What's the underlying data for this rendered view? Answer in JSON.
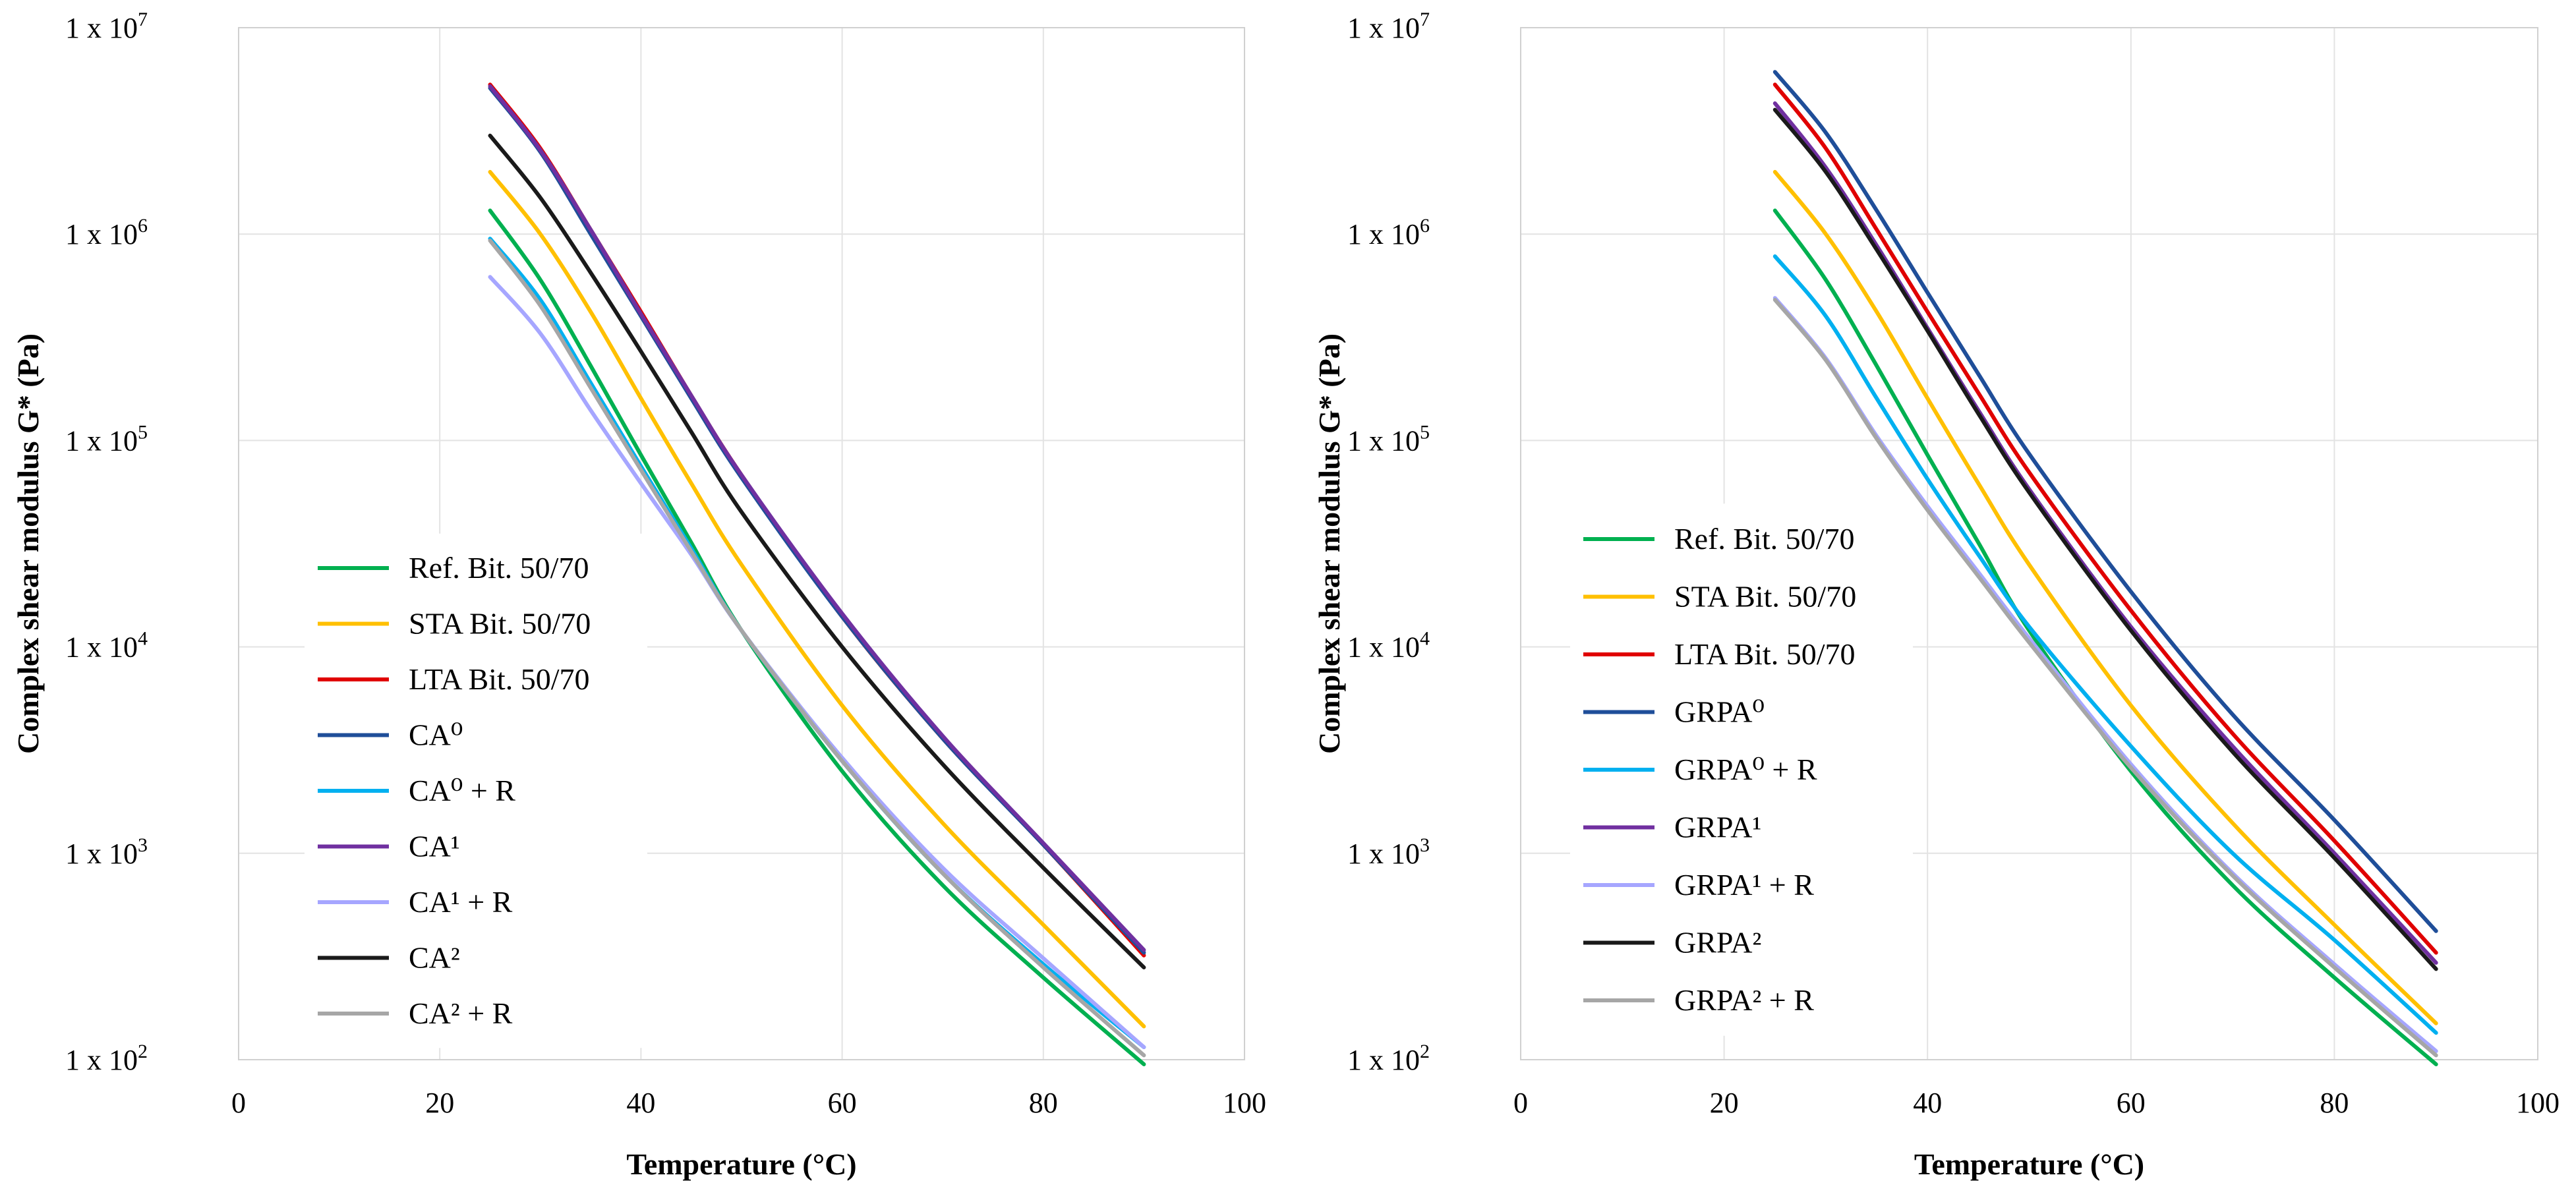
{
  "chart_data": [
    {
      "type": "line",
      "title": "",
      "xlabel": "Temperature (°C)",
      "ylabel": "Complex shear modulus G* (Pa)",
      "xlim": [
        0,
        100
      ],
      "ylim": [
        100,
        10000000
      ],
      "yscale": "log",
      "grid": true,
      "legend_position": "bottom-left",
      "x_ticks": [
        "0",
        "20",
        "40",
        "60",
        "80",
        "100"
      ],
      "y_ticks": [
        {
          "base": "1 x 10",
          "exp": "2"
        },
        {
          "base": "1 x 10",
          "exp": "3"
        },
        {
          "base": "1 x 10",
          "exp": "4"
        },
        {
          "base": "1 x 10",
          "exp": "5"
        },
        {
          "base": "1 x 10",
          "exp": "6"
        },
        {
          "base": "1 x 10",
          "exp": "7"
        }
      ],
      "series": [
        {
          "name": "Ref. Bit. 50/70",
          "color": "#00b050",
          "x": [
            25,
            30,
            35,
            40,
            45,
            50,
            60,
            70,
            80,
            90
          ],
          "values": [
            1300000,
            600000,
            230000,
            85000,
            32000,
            12000,
            2500,
            700,
            250,
            95
          ]
        },
        {
          "name": "STA Bit. 50/70",
          "color": "#ffc000",
          "x": [
            25,
            30,
            35,
            40,
            45,
            50,
            60,
            70,
            80,
            90
          ],
          "values": [
            2000000,
            1000000,
            420000,
            160000,
            62000,
            25000,
            5200,
            1400,
            450,
            145
          ]
        },
        {
          "name": "LTA Bit. 50/70",
          "color": "#e00000",
          "x": [
            25,
            30,
            35,
            40,
            45,
            50,
            60,
            70,
            80,
            90
          ],
          "values": [
            5300000,
            2600000,
            1050000,
            420000,
            165000,
            68000,
            14000,
            3600,
            1100,
            320
          ]
        },
        {
          "name": "CA⁰",
          "color": "#1f4e99",
          "x": [
            25,
            30,
            35,
            40,
            45,
            50,
            60,
            70,
            80,
            90
          ],
          "values": [
            5100000,
            2500000,
            1000000,
            400000,
            160000,
            66000,
            14000,
            3600,
            1100,
            330
          ]
        },
        {
          "name": "CA⁰ + R",
          "color": "#00b0f0",
          "x": [
            25,
            30,
            35,
            40,
            45,
            50,
            60,
            70,
            80,
            90
          ],
          "values": [
            950000,
            480000,
            190000,
            75000,
            30000,
            12000,
            2800,
            800,
            290,
            115
          ]
        },
        {
          "name": "CA¹",
          "color": "#7030a0",
          "x": [
            25,
            30,
            35,
            40,
            45,
            50,
            60,
            70,
            80,
            90
          ],
          "values": [
            5200000,
            2550000,
            1050000,
            410000,
            165000,
            68000,
            14500,
            3700,
            1120,
            340
          ]
        },
        {
          "name": "CA¹ + R",
          "color": "#a6a6ff",
          "x": [
            25,
            30,
            35,
            40,
            45,
            50,
            60,
            70,
            80,
            90
          ],
          "values": [
            620000,
            330000,
            140000,
            62000,
            28000,
            12000,
            2900,
            850,
            310,
            115
          ]
        },
        {
          "name": "CA²",
          "color": "#1a1a1a",
          "x": [
            25,
            30,
            35,
            40,
            45,
            50,
            60,
            70,
            80,
            90
          ],
          "values": [
            3000000,
            1500000,
            650000,
            270000,
            110000,
            45000,
            10000,
            2700,
            850,
            280
          ]
        },
        {
          "name": "CA² + R",
          "color": "#a6a6a6",
          "x": [
            25,
            30,
            35,
            40,
            45,
            50,
            60,
            70,
            80,
            90
          ],
          "values": [
            930000,
            450000,
            180000,
            72000,
            29000,
            12000,
            2800,
            800,
            280,
            105
          ]
        }
      ]
    },
    {
      "type": "line",
      "title": "",
      "xlabel": "Temperature (°C)",
      "ylabel": "Complex shear modulus G* (Pa)",
      "xlim": [
        0,
        100
      ],
      "ylim": [
        100,
        10000000
      ],
      "yscale": "log",
      "grid": true,
      "legend_position": "bottom-left",
      "x_ticks": [
        "0",
        "20",
        "40",
        "60",
        "80",
        "100"
      ],
      "y_ticks": [
        {
          "base": "1 x 10",
          "exp": "2"
        },
        {
          "base": "1 x 10",
          "exp": "3"
        },
        {
          "base": "1 x 10",
          "exp": "4"
        },
        {
          "base": "1 x 10",
          "exp": "5"
        },
        {
          "base": "1 x 10",
          "exp": "6"
        },
        {
          "base": "1 x 10",
          "exp": "7"
        }
      ],
      "series": [
        {
          "name": "Ref. Bit. 50/70",
          "color": "#00b050",
          "x": [
            25,
            30,
            35,
            40,
            45,
            50,
            60,
            70,
            80,
            90
          ],
          "values": [
            1300000,
            600000,
            230000,
            85000,
            32000,
            12000,
            2500,
            700,
            250,
            95
          ]
        },
        {
          "name": "STA Bit. 50/70",
          "color": "#ffc000",
          "x": [
            25,
            30,
            35,
            40,
            45,
            50,
            60,
            70,
            80,
            90
          ],
          "values": [
            2000000,
            1000000,
            420000,
            160000,
            62000,
            25000,
            5200,
            1400,
            450,
            150
          ]
        },
        {
          "name": "LTA Bit. 50/70",
          "color": "#e00000",
          "x": [
            25,
            30,
            35,
            40,
            45,
            50,
            60,
            70,
            80,
            90
          ],
          "values": [
            5300000,
            2600000,
            1050000,
            420000,
            170000,
            70000,
            15000,
            3800,
            1150,
            330
          ]
        },
        {
          "name": "GRPA⁰",
          "color": "#1f4e99",
          "x": [
            25,
            30,
            35,
            40,
            45,
            50,
            60,
            70,
            80,
            90
          ],
          "values": [
            6100000,
            3100000,
            1300000,
            520000,
            210000,
            86000,
            18500,
            4700,
            1450,
            420
          ]
        },
        {
          "name": "GRPA⁰ + R",
          "color": "#00b0f0",
          "x": [
            25,
            30,
            35,
            40,
            45,
            50,
            60,
            70,
            80,
            90
          ],
          "values": [
            780000,
            400000,
            160000,
            65000,
            28000,
            12500,
            3300,
            1000,
            380,
            135
          ]
        },
        {
          "name": "GRPA¹",
          "color": "#7030a0",
          "x": [
            25,
            30,
            35,
            40,
            45,
            50,
            60,
            70,
            80,
            90
          ],
          "values": [
            4300000,
            2100000,
            880000,
            350000,
            140000,
            58000,
            12500,
            3300,
            1000,
            295
          ]
        },
        {
          "name": "GRPA¹ + R",
          "color": "#a6a6ff",
          "x": [
            25,
            30,
            35,
            40,
            45,
            50,
            60,
            70,
            80,
            90
          ],
          "values": [
            490000,
            250000,
            105000,
            48000,
            23000,
            11000,
            2700,
            800,
            290,
            110
          ]
        },
        {
          "name": "GRPA²",
          "color": "#1a1a1a",
          "x": [
            25,
            30,
            35,
            40,
            45,
            50,
            60,
            70,
            80,
            90
          ],
          "values": [
            4000000,
            2000000,
            840000,
            340000,
            135000,
            56000,
            12000,
            3100,
            950,
            275
          ]
        },
        {
          "name": "GRPA² + R",
          "color": "#a6a6a6",
          "x": [
            25,
            30,
            35,
            40,
            45,
            50,
            60,
            70,
            80,
            90
          ],
          "values": [
            480000,
            245000,
            102000,
            46000,
            22000,
            10500,
            2600,
            780,
            280,
            105
          ]
        }
      ]
    }
  ]
}
